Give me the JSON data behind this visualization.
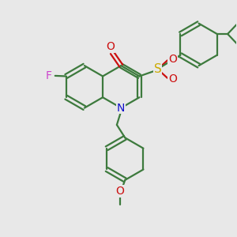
{
  "background_color": "#e8e8e8",
  "bond_color": "#3d7a3d",
  "N_color": "#1010cc",
  "O_color": "#cc1010",
  "F_color": "#cc44cc",
  "S_color": "#ccaa00",
  "bond_lw": 1.6,
  "figsize": [
    3.0,
    3.0
  ],
  "dpi": 100,
  "xlim": [
    0,
    10
  ],
  "ylim": [
    0,
    10
  ]
}
